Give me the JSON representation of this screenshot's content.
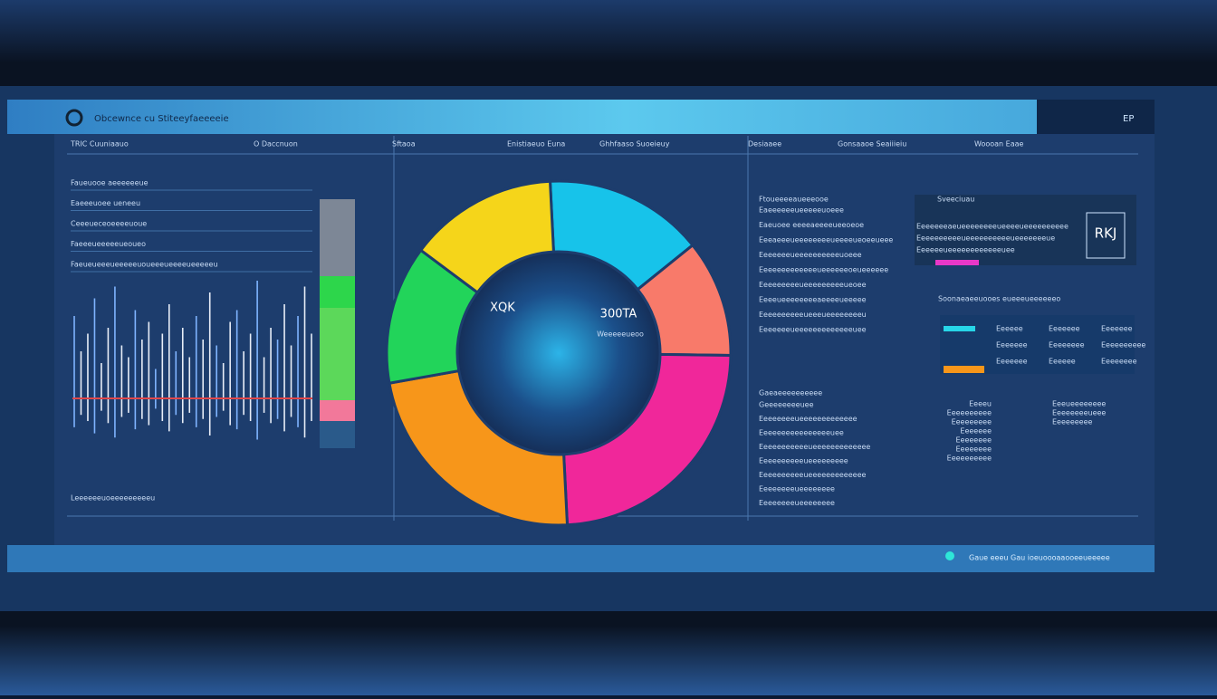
{
  "header": {
    "title": "Obcewnce cu Stiteeyfaeeeeie",
    "badge": "EP"
  },
  "columns": [
    "TRIC Cuuniaauo",
    "O Daccnuon",
    "Sftaoa",
    "Enistiaeuo Euna",
    "Ghhfaaso Suoeieuy",
    "Desiaaee",
    "Gonsaaoe Seaiiieiu",
    "Woooan Eaae"
  ],
  "left_rows": [
    "Faueuooe aeeeeeeue",
    "Eaeeeuoee ueneeu",
    "Ceeeueceoeeeeuoue",
    "Faeeeueeeeeueoueo",
    "Faeueueeeueeeeeuoueeeueeeeueeeeeu"
  ],
  "left_footer": "Leeeeeeuoeeeeeeeeeu",
  "spikes": [
    70,
    40,
    55,
    85,
    30,
    60,
    95,
    45,
    35,
    75,
    50,
    65,
    25,
    55,
    80,
    40,
    60,
    35,
    70,
    50,
    90,
    45,
    30,
    65,
    75,
    40,
    55,
    100,
    35,
    60,
    50,
    80,
    45,
    70,
    95,
    55
  ],
  "donut": {
    "labels": [
      "XQK",
      "300TA"
    ],
    "sublabel": "Weeeeeueoo",
    "values": [
      15,
      11,
      24,
      23,
      13,
      14
    ],
    "colors": [
      "#17c3ea",
      "#f87a6a",
      "#f0279a",
      "#f7961a",
      "#22d45a",
      "#f5d51a"
    ]
  },
  "mid_panel": {
    "title": "Ftoueeeeaueeeooe",
    "rows": [
      "Eaeeeeeeueeeeeuoeee",
      "Eaeuoee eeeeaeeeeueeoeoe",
      "Eeeaeeeueeeeeeeeueeeeueoeeueee",
      "Eeeeeeeueeeeeeeeeeuoeee",
      "Eeeeeeeeeeeeeueeeeeeoeueeeeee",
      "Eeeeeeeeeueeeeeeeeeueoee",
      "Eeeeueeeeeeeeaeeeeueeeee",
      "Eeeeeeeeeeueeeueeeeeeeeu",
      "Eeeeeeeueeeeeeeeeeeeeuee"
    ],
    "title2": "Gaeaeeeeeeeeee",
    "rows2": [
      "Geeeeeeeeuee",
      "Eeeeeeeeueeeeeeeeeeeee",
      "Eeeeeeeeeeeeeeeeuee",
      "Eeeeeeeeeeeueeeeeeeeeeeee",
      "Eeeeeeeeeeueeeeeeeee",
      "Eeeeeeeeeeueeeeeeeeeeeee",
      "Eeeeeeeeueeeeeeee",
      "Eeeeeeeeueeeeeeee"
    ]
  },
  "right_panel": {
    "title": "Sveeciuau",
    "code": "RKJ",
    "rows": [
      "Eeeeeeeaeueeeeeeeeueeeeueeeeeeeeee",
      "Eeeeeeeeeeueeeeeeeeeeueeeeeeeue",
      "Eeeeeeueeeeeeeeeeeeuee"
    ],
    "subtitle": "Soonaeaeeuooes eueeeueeeeeeo",
    "table": [
      [
        "Eeeeee",
        "Eeeeeee",
        "Eeeeeee"
      ],
      [
        "Eeeeeee",
        "Eeeeeeee",
        "Eeeeeeeeee"
      ],
      [
        "Eeeeeee",
        "Eeeeee",
        "Eeeeeeee"
      ]
    ],
    "list": [
      [
        "Eeeeu",
        "Eeeueeeeeeee"
      ],
      [
        "Eeeeeeeeee",
        "Eeeeeeeeueee"
      ],
      [
        "Eeeeeeeee",
        "Eeeeeeeee"
      ],
      [
        "Eeeeeee",
        ""
      ],
      [
        "Eeeeeeee",
        ""
      ],
      [
        "Eeeeeeee",
        ""
      ],
      [
        "Eeeeeeeeee",
        ""
      ]
    ]
  },
  "footer": {
    "text": "Gaue eeeu    Gau ioeuoooaaooeeueeeee"
  }
}
